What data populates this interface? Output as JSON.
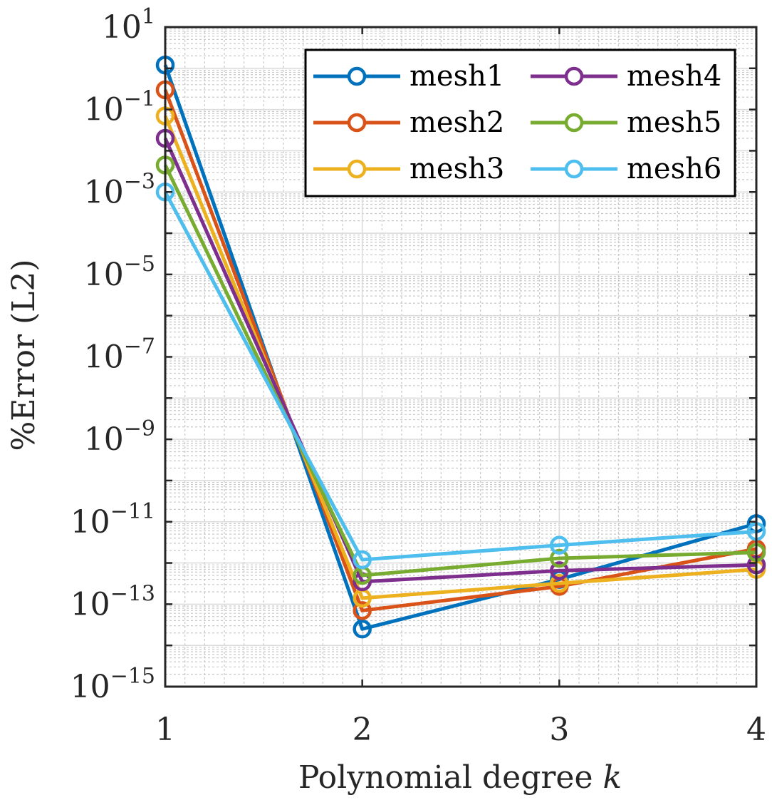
{
  "chart_data": {
    "type": "line",
    "title": "",
    "xlabel": "Polynomial degree",
    "xlabel_var": "k",
    "ylabel": "%Error (L2)",
    "x": [
      1,
      2,
      3,
      4
    ],
    "xlim": [
      1,
      4
    ],
    "x_ticks": [
      "1",
      "2",
      "3",
      "4"
    ],
    "ylim": [
      1e-15,
      10
    ],
    "y_scale": "log",
    "y_tick_exponents": [
      "1",
      "−1",
      "−3",
      "−5",
      "−7",
      "−9",
      "−11",
      "−13",
      "−15"
    ],
    "y_tick_base": "10",
    "grid": true,
    "minor_grid": true,
    "marker": "circle-open",
    "legend": {
      "location": "top-right",
      "columns": 2
    },
    "series": [
      {
        "name": "mesh1",
        "color": "#0072BD",
        "values": [
          1.2,
          2.5e-14,
          4e-13,
          9e-12
        ]
      },
      {
        "name": "mesh2",
        "color": "#D95319",
        "values": [
          0.3,
          7e-14,
          2.7e-13,
          2.2e-12
        ]
      },
      {
        "name": "mesh3",
        "color": "#EDB120",
        "values": [
          0.07,
          1.4e-13,
          3.2e-13,
          7e-13
        ]
      },
      {
        "name": "mesh4",
        "color": "#7E2F8E",
        "values": [
          0.02,
          3.5e-13,
          6.5e-13,
          9e-13
        ]
      },
      {
        "name": "mesh5",
        "color": "#77AC30",
        "values": [
          0.0045,
          5e-13,
          1.3e-12,
          1.8e-12
        ]
      },
      {
        "name": "mesh6",
        "color": "#4DBEEE",
        "values": [
          0.001,
          1.2e-12,
          2.7e-12,
          5.8e-12
        ]
      }
    ]
  }
}
